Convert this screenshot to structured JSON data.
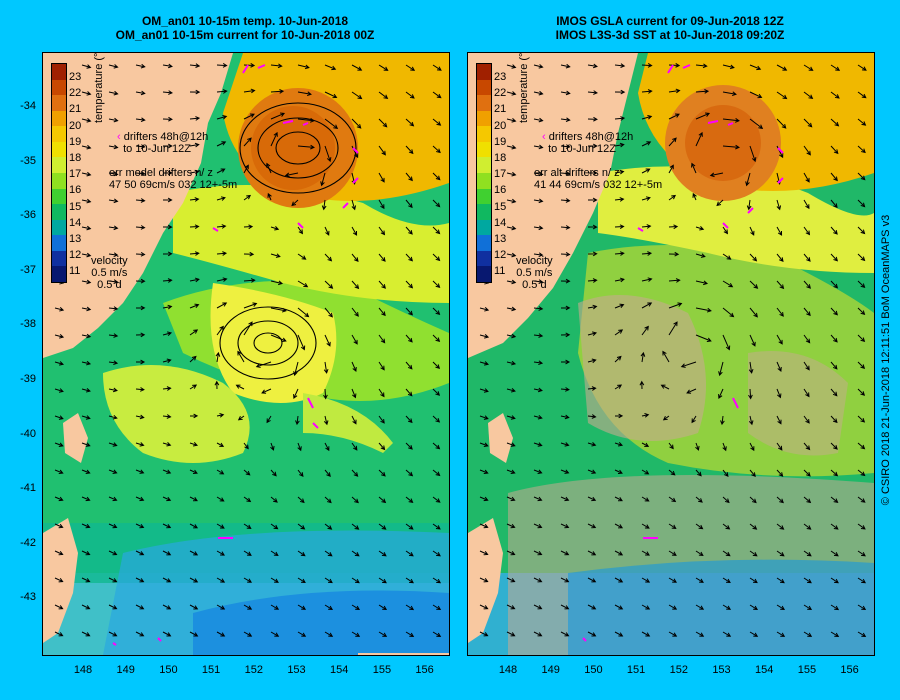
{
  "left_panel": {
    "title_line1": "OM_an01 10-15m temp. 10-Jun-2018",
    "title_line2": "OM_an01 10-15m current for 10-Jun-2018 00Z",
    "drifters_line1": "drifters 48h@12h",
    "drifters_line2": "to 10-Jun 12Z",
    "err_line1": "err model drifters n/ z",
    "err_line2": "47 50 69cm/s 032 12+-5m"
  },
  "right_panel": {
    "title_line1": "IMOS GSLA current for 09-Jun-2018 12Z",
    "title_line2": "IMOS L3S-3d SST at 10-Jun-2018 09:20Z",
    "drifters_line1": "drifters 48h@12h",
    "drifters_line2": "to 10-Jun 12Z",
    "err_line1": "err alt drifters n/ z",
    "err_line2": "41 44 69cm/s 032 12+-5m"
  },
  "velocity_legend": {
    "label": "velocity",
    "speed": "0.5 m/s",
    "duration": "0.5 d"
  },
  "colorbar": {
    "title": "temperature (°C)",
    "ticks": [
      "23",
      "22",
      "21",
      "20",
      "19",
      "18",
      "17",
      "16",
      "15",
      "14",
      "13",
      "12",
      "11"
    ],
    "colors": [
      "#a02000",
      "#c84800",
      "#e07010",
      "#f0a000",
      "#f5c800",
      "#f0e000",
      "#d0ee30",
      "#90e020",
      "#40d030",
      "#10b860",
      "#00a8a0",
      "#1070d8",
      "#1030a0",
      "#081870"
    ]
  },
  "axes": {
    "lat_ticks": [
      "-34",
      "-35",
      "-36",
      "-37",
      "-38",
      "-39",
      "-40",
      "-41",
      "-42",
      "-43"
    ],
    "lon_ticks": [
      "148",
      "149",
      "150",
      "151",
      "152",
      "153",
      "154",
      "155",
      "156"
    ]
  },
  "side_text": "© CSIRO 2018   21-Jun-2018 12:11:51 BoM OceanMAPS v3",
  "colors": {
    "background": "#00c8ff",
    "land": "#f8c8a0",
    "no_data": "#c8aa90",
    "drifter": "#ff00ff"
  }
}
